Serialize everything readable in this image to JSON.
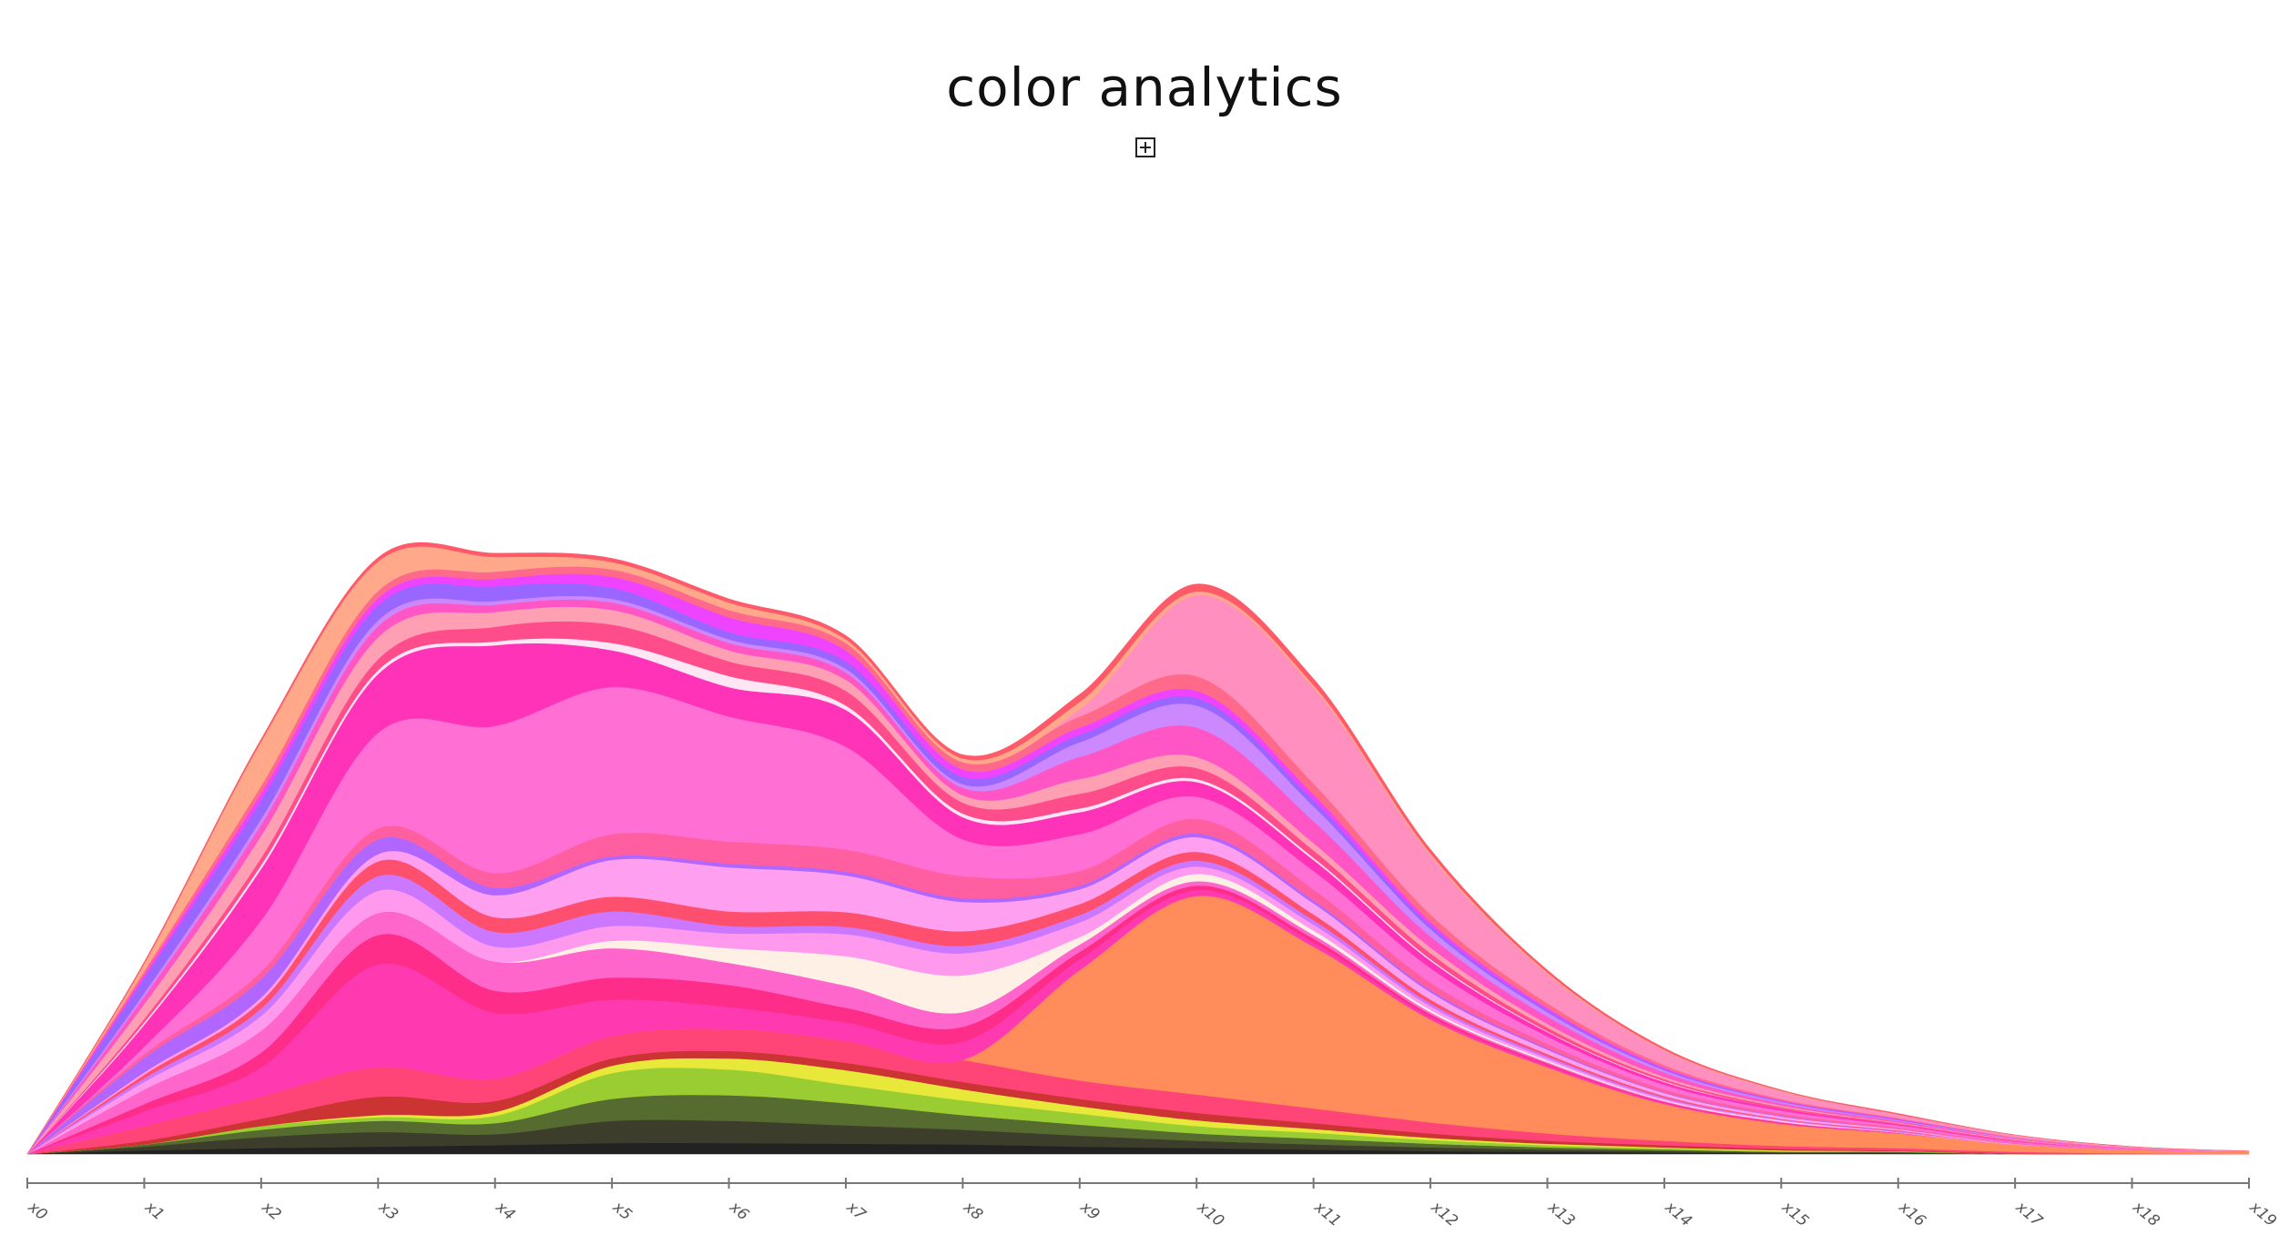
{
  "page": {
    "title": "color analytics",
    "expand_icon": "expand-plus-icon"
  },
  "chart_data": {
    "type": "area",
    "stacked": true,
    "offset": "zero",
    "interpolation": "smooth",
    "title": "color analytics",
    "xlabel": "",
    "ylabel": "",
    "x_ticks": [
      "x0",
      "x1",
      "x2",
      "x3",
      "x4",
      "x5",
      "x6",
      "x7",
      "x8",
      "x9",
      "x10",
      "x11",
      "x12",
      "x13",
      "x14",
      "x15",
      "x16",
      "x17",
      "x18",
      "x19"
    ],
    "ylim": [
      0,
      100
    ],
    "grid": false,
    "legend": "none",
    "series": [
      {
        "color": "#222222",
        "values": [
          0,
          0.5,
          0.8,
          1.0,
          1.2,
          1.5,
          1.5,
          1.4,
          1.3,
          1.0,
          0.8,
          0.6,
          0.4,
          0.3,
          0.2,
          0.1,
          0.1,
          0,
          0,
          0
        ]
      },
      {
        "color": "#3d3d2b",
        "values": [
          0,
          0.5,
          1.5,
          2.0,
          1.5,
          3.0,
          3.0,
          2.5,
          2.0,
          1.5,
          1.0,
          0.7,
          0.5,
          0.3,
          0.2,
          0.1,
          0.1,
          0,
          0,
          0
        ]
      },
      {
        "color": "#556b2f",
        "values": [
          0,
          0.3,
          1.0,
          1.5,
          1.5,
          3.0,
          3.5,
          3.0,
          2.0,
          1.5,
          1.0,
          0.8,
          0.5,
          0.3,
          0.2,
          0.1,
          0.1,
          0,
          0,
          0
        ]
      },
      {
        "color": "#9acd32",
        "values": [
          0,
          0,
          0.5,
          0.5,
          1.0,
          3.5,
          3.5,
          2.5,
          2.0,
          1.5,
          1.0,
          0.8,
          0.5,
          0.3,
          0.2,
          0.1,
          0.1,
          0,
          0,
          0
        ]
      },
      {
        "color": "#e8e83a",
        "values": [
          0,
          0,
          0,
          0.3,
          0.5,
          1.0,
          1.5,
          2.0,
          1.5,
          1.0,
          0.8,
          0.5,
          0.3,
          0.2,
          0.1,
          0.1,
          0,
          0,
          0,
          0
        ]
      },
      {
        "color": "#cc3333",
        "values": [
          0,
          0.5,
          1.0,
          2.5,
          1.5,
          1.0,
          1.0,
          1.0,
          1.0,
          1.0,
          1.0,
          0.8,
          0.6,
          0.4,
          0.3,
          0.2,
          0.1,
          0.1,
          0,
          0
        ]
      },
      {
        "color": "#ff4477",
        "values": [
          0,
          2.0,
          3.0,
          4.0,
          3.0,
          3.0,
          3.0,
          3.0,
          3.0,
          2.5,
          2.5,
          2.0,
          1.5,
          1.0,
          0.6,
          0.4,
          0.3,
          0.2,
          0.1,
          0
        ]
      },
      {
        "color": "#ff8c5a",
        "values": [
          0,
          0,
          0,
          0,
          0,
          0,
          0,
          0,
          0,
          15.0,
          27.0,
          22.0,
          14.0,
          9.0,
          5.0,
          3.0,
          2.0,
          1.0,
          0.5,
          0.3
        ]
      },
      {
        "color": "#ff3ab0",
        "values": [
          0,
          2.0,
          4.0,
          14.0,
          9.0,
          5.0,
          3.0,
          2.5,
          2.5,
          1.5,
          0.8,
          0.6,
          0.4,
          0.3,
          0.2,
          0.1,
          0.1,
          0,
          0,
          0
        ]
      },
      {
        "color": "#ff2d8a",
        "values": [
          0,
          1.0,
          2.0,
          4.0,
          3.0,
          3.0,
          3.0,
          2.0,
          2.0,
          1.0,
          0.6,
          0.5,
          0.3,
          0.2,
          0.1,
          0.1,
          0,
          0,
          0,
          0
        ]
      },
      {
        "color": "#ff66cc",
        "values": [
          0,
          2.0,
          3.0,
          3.0,
          4.0,
          4.0,
          3.0,
          3.0,
          2.0,
          1.0,
          0.6,
          0.5,
          0.3,
          0.2,
          0.1,
          0.1,
          0,
          0,
          0,
          0
        ]
      },
      {
        "color": "#fff0e6",
        "values": [
          0,
          0,
          0,
          0,
          0,
          1.0,
          2.0,
          4.0,
          5.0,
          1.0,
          1.0,
          0.6,
          0.3,
          0.2,
          0.1,
          0.1,
          0,
          0,
          0,
          0
        ]
      },
      {
        "color": "#ff99ee",
        "values": [
          0,
          1.0,
          2.0,
          3.0,
          2.0,
          2.0,
          2.0,
          3.0,
          3.0,
          2.0,
          1.0,
          0.8,
          0.5,
          0.3,
          0.2,
          0.1,
          0.1,
          0,
          0,
          0
        ]
      },
      {
        "color": "#cc77ff",
        "values": [
          0,
          0.5,
          1.0,
          2.0,
          2.0,
          2.0,
          1.0,
          1.0,
          1.0,
          1.0,
          0.8,
          0.6,
          0.4,
          0.3,
          0.2,
          0.1,
          0.1,
          0,
          0,
          0
        ]
      },
      {
        "color": "#ff4f6e",
        "values": [
          0,
          0.5,
          1.0,
          2.0,
          2.0,
          2.0,
          2.0,
          2.0,
          2.0,
          1.5,
          1.2,
          0.8,
          0.5,
          0.3,
          0.2,
          0.1,
          0.1,
          0,
          0,
          0
        ]
      },
      {
        "color": "#ff9ff0",
        "values": [
          0,
          0.3,
          0.5,
          1.0,
          3.0,
          5.0,
          6.0,
          5.0,
          4.0,
          2.0,
          2.0,
          1.5,
          1.0,
          0.6,
          0.4,
          0.3,
          0.2,
          0.1,
          0,
          0
        ]
      },
      {
        "color": "#b066ff",
        "values": [
          0,
          2.0,
          2.5,
          2.0,
          1.0,
          0.5,
          0.5,
          0.5,
          0.5,
          0.5,
          0.5,
          0.4,
          0.3,
          0.2,
          0.1,
          0.1,
          0,
          0,
          0,
          0
        ]
      },
      {
        "color": "#ff5fa0",
        "values": [
          0,
          0.5,
          1.0,
          1.5,
          2.0,
          3.0,
          3.0,
          3.0,
          3.0,
          2.0,
          2.0,
          1.5,
          1.0,
          0.6,
          0.4,
          0.3,
          0.2,
          0.1,
          0,
          0
        ]
      },
      {
        "color": "#ff6fd4",
        "values": [
          0,
          1.0,
          7.0,
          13.0,
          20.0,
          20.0,
          17.0,
          14.0,
          5.0,
          5.0,
          3.0,
          2.5,
          2.0,
          1.0,
          0.6,
          0.4,
          0.3,
          0.2,
          0.1,
          0
        ]
      },
      {
        "color": "#ff33b8",
        "values": [
          0,
          3.0,
          7.0,
          8.0,
          11.0,
          5.0,
          4.0,
          5.0,
          3.0,
          3.0,
          2.0,
          1.5,
          1.0,
          0.6,
          0.4,
          0.3,
          0.2,
          0.1,
          0,
          0
        ]
      },
      {
        "color": "#ffe6f5",
        "values": [
          0,
          0.3,
          0.5,
          0.5,
          0.5,
          1.0,
          1.5,
          0.6,
          0.5,
          0.5,
          0.4,
          0.3,
          0.2,
          0.1,
          0.1,
          0,
          0,
          0,
          0,
          0
        ]
      },
      {
        "color": "#ff4d8c",
        "values": [
          0,
          0.5,
          1.0,
          1.5,
          2.0,
          2.5,
          2.0,
          2.0,
          1.5,
          2.0,
          1.5,
          1.0,
          0.8,
          0.5,
          0.3,
          0.2,
          0.1,
          0.1,
          0,
          0
        ]
      },
      {
        "color": "#ff9fb4",
        "values": [
          0,
          2.0,
          3.0,
          3.0,
          2.0,
          2.0,
          1.5,
          1.5,
          1.0,
          2.0,
          1.5,
          1.0,
          0.8,
          0.5,
          0.3,
          0.2,
          0.1,
          0.1,
          0,
          0
        ]
      },
      {
        "color": "#ff55c5",
        "values": [
          0,
          1.0,
          1.5,
          1.5,
          1.0,
          1.0,
          1.0,
          1.0,
          1.0,
          3.0,
          4.0,
          3.0,
          1.5,
          1.0,
          0.6,
          0.3,
          0.2,
          0.1,
          0.1,
          0
        ]
      },
      {
        "color": "#cc88ff",
        "values": [
          0,
          0.5,
          0.8,
          0.8,
          0.5,
          0.5,
          0.5,
          0.5,
          0.5,
          2.0,
          3.0,
          2.0,
          1.0,
          0.6,
          0.3,
          0.2,
          0.1,
          0.1,
          0,
          0
        ]
      },
      {
        "color": "#9966ff",
        "values": [
          0,
          2.0,
          2.5,
          2.0,
          2.0,
          1.5,
          1.0,
          1.0,
          1.0,
          1.0,
          1.0,
          0.8,
          0.5,
          0.3,
          0.2,
          0.1,
          0.1,
          0,
          0,
          0
        ]
      },
      {
        "color": "#ee44ff",
        "values": [
          0,
          0.5,
          1.0,
          1.0,
          1.0,
          1.5,
          2.0,
          1.5,
          1.0,
          1.0,
          1.0,
          0.8,
          0.5,
          0.3,
          0.2,
          0.1,
          0.1,
          0,
          0,
          0
        ]
      },
      {
        "color": "#ff6a8a",
        "values": [
          0,
          0.5,
          1.0,
          1.0,
          1.0,
          1.0,
          1.0,
          1.0,
          1.0,
          1.5,
          2.0,
          1.5,
          1.0,
          0.6,
          0.3,
          0.2,
          0.1,
          0.1,
          0,
          0
        ]
      },
      {
        "color": "#ff8fbf",
        "values": [
          0,
          0,
          0,
          0,
          0,
          0,
          0,
          0,
          0,
          1.0,
          11.0,
          13.0,
          8.0,
          4.0,
          2.0,
          1.0,
          0.5,
          0.3,
          0.2,
          0.1
        ]
      },
      {
        "color": "#ffa98a",
        "values": [
          0,
          1.0,
          6.0,
          4.0,
          2.0,
          1.0,
          1.0,
          0.5,
          0.5,
          1.0,
          0.5,
          0.4,
          0.3,
          0.2,
          0.1,
          0.1,
          0,
          0,
          0,
          0
        ]
      },
      {
        "color": "#ff5a6a",
        "values": [
          0,
          0.2,
          0.3,
          0.5,
          0.5,
          0.5,
          0.5,
          0.5,
          0.5,
          1.0,
          1.0,
          0.8,
          0.5,
          0.3,
          0.2,
          0.1,
          0.1,
          0,
          0,
          0
        ]
      }
    ]
  }
}
